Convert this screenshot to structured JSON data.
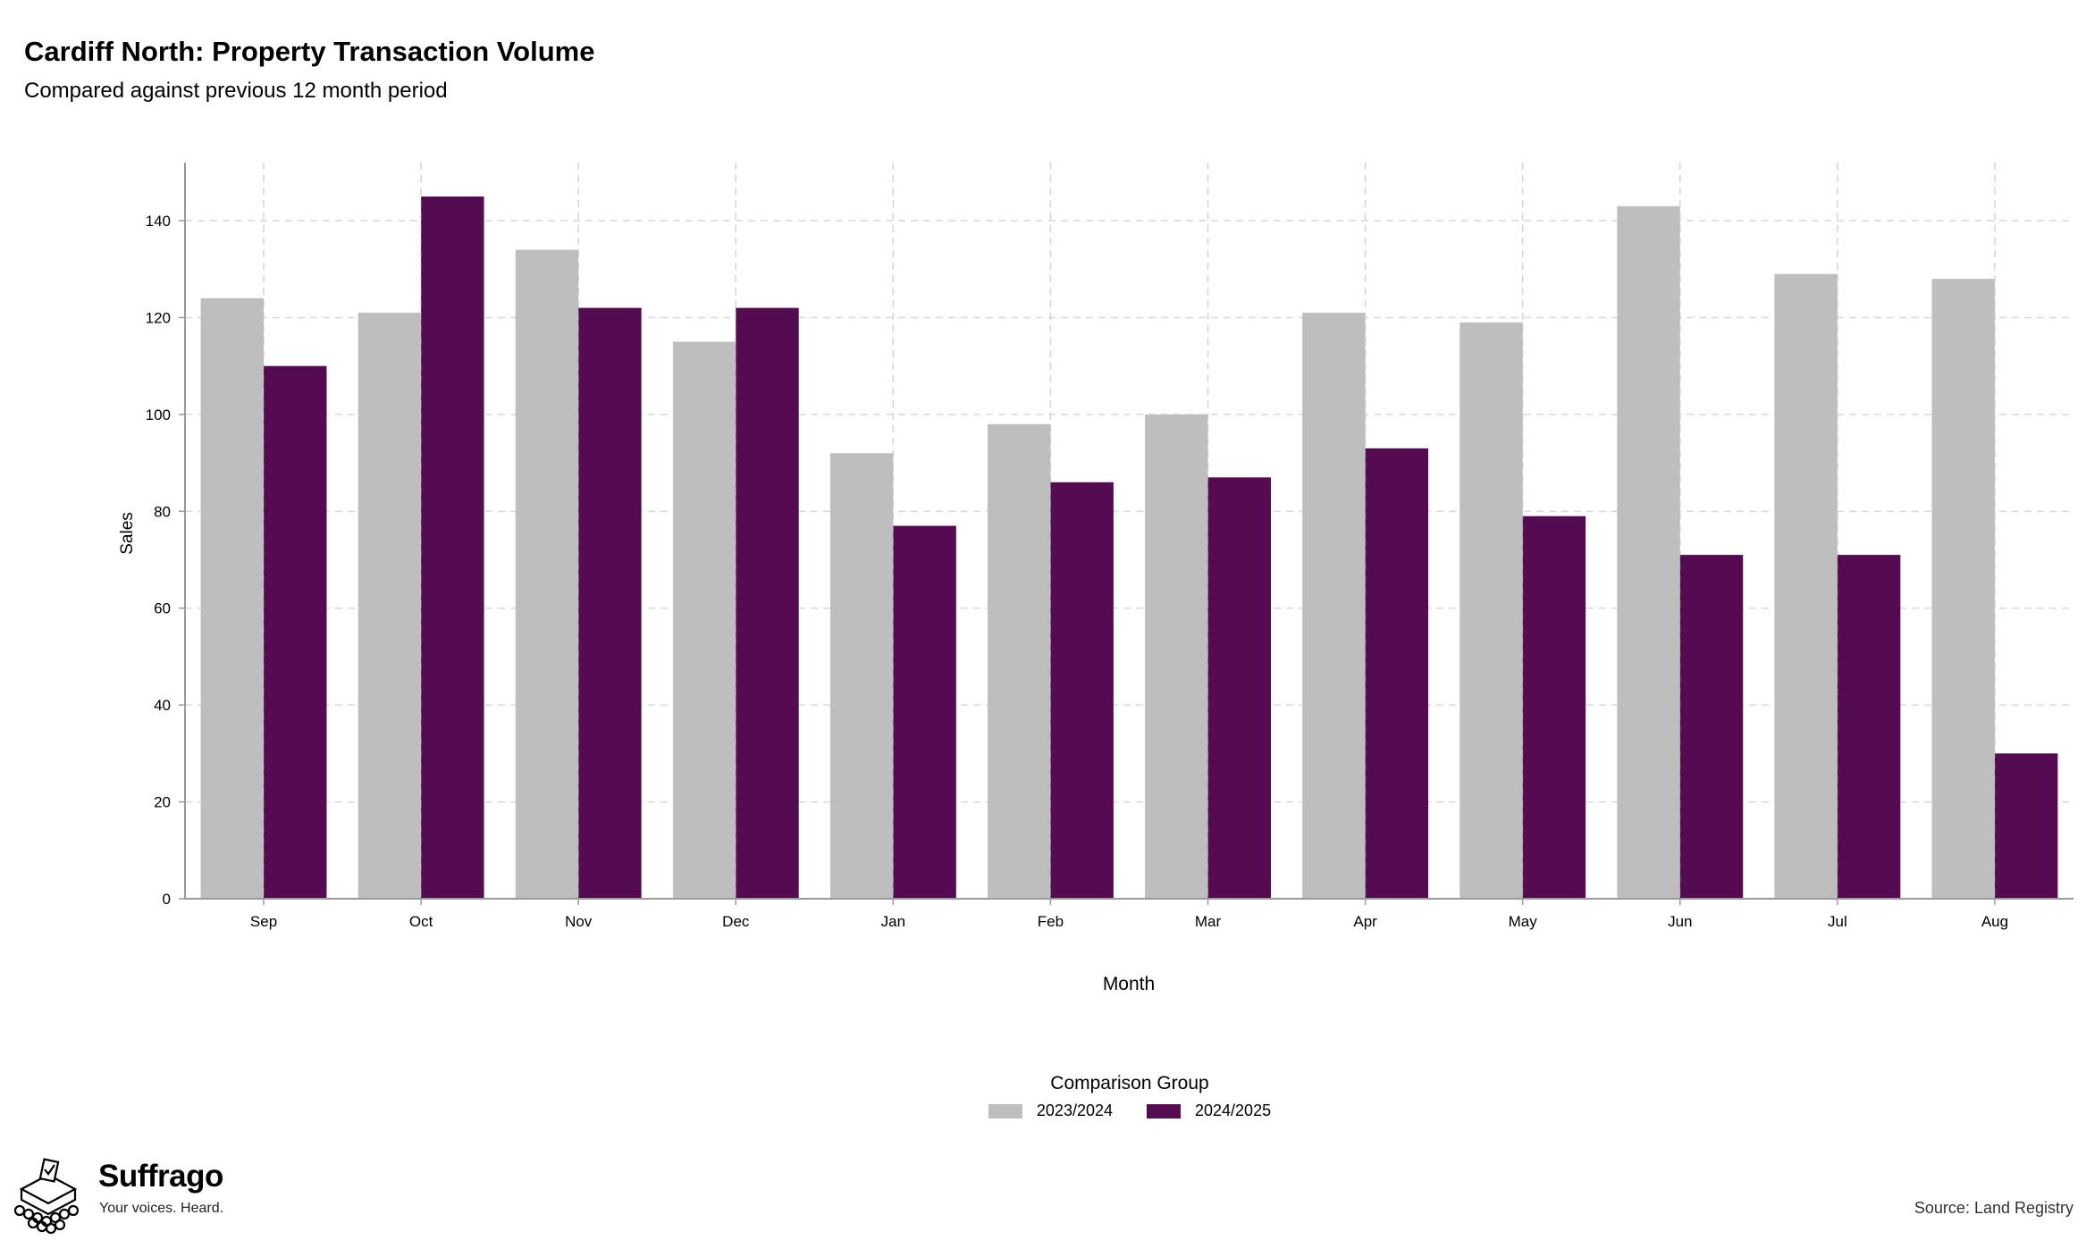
{
  "header": {
    "title": "Cardiff North: Property Transaction Volume",
    "subtitle": "Compared against previous 12 month period"
  },
  "chart_data": {
    "type": "bar",
    "title": "Cardiff North: Property Transaction Volume",
    "subtitle": "Compared against previous 12 month period",
    "xlabel": "Month",
    "ylabel": "Sales",
    "ylim": [
      0,
      152
    ],
    "yticks": [
      0,
      20,
      40,
      60,
      80,
      100,
      120,
      140
    ],
    "categories": [
      "Sep",
      "Oct",
      "Nov",
      "Dec",
      "Jan",
      "Feb",
      "Mar",
      "Apr",
      "May",
      "Jun",
      "Jul",
      "Aug"
    ],
    "series": [
      {
        "name": "2023/2024",
        "color": "#bebebe",
        "values": [
          124,
          121,
          134,
          115,
          92,
          98,
          100,
          121,
          119,
          143,
          129,
          128
        ]
      },
      {
        "name": "2024/2025",
        "color": "#540b51",
        "values": [
          110,
          145,
          122,
          122,
          77,
          86,
          87,
          93,
          79,
          71,
          71,
          30
        ]
      }
    ],
    "grid": true,
    "legend": {
      "title": "Comparison Group",
      "position": "bottom"
    }
  },
  "legend": {
    "title": "Comparison Group",
    "items": [
      {
        "label": "2023/2024",
        "color": "#bebebe"
      },
      {
        "label": "2024/2025",
        "color": "#540b51"
      }
    ]
  },
  "brand": {
    "name": "Suffrago",
    "tagline": "Your voices. Heard.",
    "icon": "ballot-box-icon"
  },
  "footer": {
    "source": "Source: Land Registry"
  }
}
